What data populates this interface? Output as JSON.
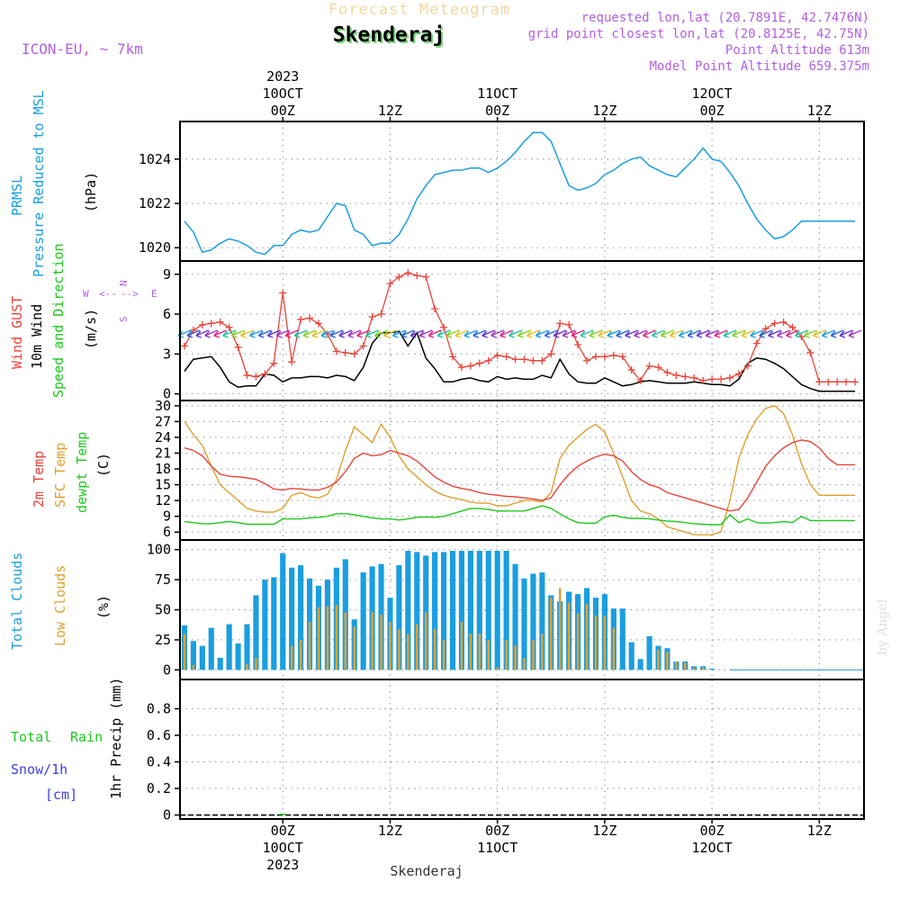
{
  "header": {
    "title": "Forecast Meteogram",
    "location": "Skenderaj",
    "model": "ICON-EU, ~ 7km",
    "requested": "requested lon,lat (20.7891E, 42.7476N)",
    "gridpoint": "grid point closest lon,lat (20.8125E, 42.75N)",
    "point_alt": "Point Altitude 613m",
    "model_alt": "Model Point Altitude 659.375m",
    "footer": "Skenderaj",
    "credit": "by Angel",
    "compass": {
      "n": "N",
      "s": "S",
      "w": "W",
      "e": "E",
      "arrows_h": "<--",
      "arrows_h2": "-->"
    }
  },
  "time_axis": {
    "top": [
      {
        "h": 0,
        "lines": [
          "2023",
          "10OCT",
          "00Z"
        ]
      },
      {
        "h": 12,
        "lines": [
          "12Z"
        ]
      },
      {
        "h": 24,
        "lines": [
          "11OCT",
          "00Z"
        ]
      },
      {
        "h": 36,
        "lines": [
          "12Z"
        ]
      },
      {
        "h": 48,
        "lines": [
          "12OCT",
          "00Z"
        ]
      },
      {
        "h": 60,
        "lines": [
          "12Z"
        ]
      }
    ],
    "bottom": [
      {
        "h": 0,
        "lines": [
          "00Z",
          "10OCT",
          "2023"
        ]
      },
      {
        "h": 12,
        "lines": [
          "12Z"
        ]
      },
      {
        "h": 24,
        "lines": [
          "00Z",
          "11OCT"
        ]
      },
      {
        "h": 36,
        "lines": [
          "12Z"
        ]
      },
      {
        "h": 48,
        "lines": [
          "00Z",
          "12OCT"
        ]
      },
      {
        "h": 60,
        "lines": [
          "12Z"
        ]
      }
    ]
  },
  "colors": {
    "blue": "#1a9ee0",
    "red": "#e8443a",
    "orange": "#e0a030",
    "green": "#1fc81f",
    "purple": "#b060e0",
    "black": "#000000",
    "snow": "#4040e0"
  },
  "chart_data": [
    {
      "type": "line",
      "name": "pressure",
      "ylabels": [
        "PRMSL",
        "Pressure Reduced to MSL",
        "(hPa)"
      ],
      "xlim": [
        -11.5,
        65
      ],
      "ylim": [
        1019.4,
        1025.7
      ],
      "yticks": [
        1020,
        1022,
        1024
      ],
      "x": [
        -11,
        -10,
        -9,
        -8,
        -7,
        -6,
        -5,
        -4,
        -3,
        -2,
        -1,
        0,
        1,
        2,
        3,
        4,
        5,
        6,
        7,
        8,
        9,
        10,
        11,
        12,
        13,
        14,
        15,
        16,
        17,
        18,
        19,
        20,
        21,
        22,
        23,
        24,
        25,
        26,
        27,
        28,
        29,
        30,
        31,
        32,
        33,
        34,
        35,
        36,
        37,
        38,
        39,
        40,
        41,
        42,
        43,
        44,
        45,
        46,
        47,
        48,
        49,
        50,
        51,
        52,
        53,
        54,
        55,
        56,
        57,
        58,
        59,
        60,
        61,
        62,
        63,
        64
      ],
      "values": [
        1021.2,
        1020.7,
        1019.8,
        1019.9,
        1020.2,
        1020.4,
        1020.3,
        1020.1,
        1019.8,
        1019.7,
        1020.1,
        1020.1,
        1020.6,
        1020.8,
        1020.7,
        1020.8,
        1021.4,
        1022.0,
        1021.9,
        1020.8,
        1020.6,
        1020.1,
        1020.2,
        1020.2,
        1020.6,
        1021.3,
        1022.2,
        1022.8,
        1023.3,
        1023.4,
        1023.5,
        1023.5,
        1023.6,
        1023.6,
        1023.4,
        1023.6,
        1023.9,
        1024.3,
        1024.8,
        1025.2,
        1025.2,
        1024.8,
        1023.8,
        1022.8,
        1022.6,
        1022.7,
        1022.9,
        1023.3,
        1023.5,
        1023.8,
        1024.0,
        1024.1,
        1023.7,
        1023.5,
        1023.3,
        1023.2,
        1023.6,
        1024.0,
        1024.5,
        1024.0,
        1023.9,
        1023.4,
        1022.8,
        1022.0,
        1021.3,
        1020.8,
        1020.4,
        1020.5,
        1020.8,
        1021.2,
        1021.2,
        1021.2,
        1021.2,
        1021.2,
        1021.2,
        1021.2
      ],
      "color": "#1a9ee0"
    },
    {
      "type": "line",
      "name": "wind",
      "ylabels": [
        "Wind GUST",
        "10m Wind",
        "Speed and Direction",
        "(m/s)"
      ],
      "xlim": [
        -11.5,
        65
      ],
      "ylim": [
        -0.5,
        10
      ],
      "yticks": [
        0,
        3,
        6,
        9
      ],
      "x": [
        -11,
        -10,
        -9,
        -8,
        -7,
        -6,
        -5,
        -4,
        -3,
        -2,
        -1,
        0,
        1,
        2,
        3,
        4,
        5,
        6,
        7,
        8,
        9,
        10,
        11,
        12,
        13,
        14,
        15,
        16,
        17,
        18,
        19,
        20,
        21,
        22,
        23,
        24,
        25,
        26,
        27,
        28,
        29,
        30,
        31,
        32,
        33,
        34,
        35,
        36,
        37,
        38,
        39,
        40,
        41,
        42,
        43,
        44,
        45,
        46,
        47,
        48,
        49,
        50,
        51,
        52,
        53,
        54,
        55,
        56,
        57,
        58,
        59,
        60,
        61,
        62,
        63,
        64
      ],
      "gust": [
        3.6,
        4.8,
        5.2,
        5.3,
        5.4,
        5.0,
        3.5,
        1.4,
        1.3,
        1.5,
        2.3,
        7.6,
        2.4,
        5.6,
        5.7,
        5.3,
        4.5,
        3.2,
        3.1,
        3.0,
        3.6,
        5.8,
        6.0,
        8.3,
        8.8,
        9.1,
        8.9,
        8.8,
        6.4,
        5.0,
        2.8,
        2.0,
        2.1,
        2.3,
        2.5,
        2.9,
        2.8,
        2.6,
        2.6,
        2.5,
        2.5,
        3.0,
        5.3,
        5.2,
        3.7,
        2.5,
        2.8,
        2.8,
        2.9,
        2.8,
        1.8,
        1.0,
        2.1,
        2.0,
        1.6,
        1.4,
        1.3,
        1.2,
        1.0,
        1.1,
        1.1,
        1.2,
        1.5,
        2.1,
        3.8,
        4.9,
        5.3,
        5.4,
        5.0,
        4.3,
        3.1,
        0.9,
        0.9,
        0.9,
        0.9,
        0.9
      ],
      "wind": [
        1.7,
        2.6,
        2.7,
        2.8,
        2.0,
        0.9,
        0.5,
        0.6,
        0.6,
        1.5,
        1.4,
        0.9,
        1.2,
        1.2,
        1.3,
        1.3,
        1.2,
        1.4,
        1.3,
        1.0,
        2.0,
        3.8,
        4.6,
        4.6,
        4.7,
        3.6,
        4.6,
        2.7,
        1.9,
        0.9,
        0.9,
        1.1,
        1.2,
        1.0,
        0.9,
        1.3,
        1.1,
        1.2,
        1.1,
        1.1,
        1.4,
        1.2,
        2.6,
        1.5,
        0.9,
        0.8,
        0.8,
        1.2,
        0.9,
        0.6,
        0.7,
        0.9,
        1.0,
        0.9,
        0.8,
        0.8,
        0.8,
        0.9,
        0.8,
        0.7,
        0.7,
        0.6,
        1.1,
        2.3,
        2.7,
        2.6,
        2.3,
        1.9,
        1.3,
        0.7,
        0.4,
        0.2,
        0.2,
        0.2,
        0.2,
        0.2
      ],
      "gust_color": "#e8443a",
      "wind_color": "#000000"
    },
    {
      "type": "line",
      "name": "temperature",
      "ylabels": [
        "2m Temp",
        "SFC Temp",
        "dewpt Temp",
        "(C)"
      ],
      "xlim": [
        -11.5,
        65
      ],
      "ylim": [
        4.5,
        31
      ],
      "yticks": [
        6,
        9,
        12,
        15,
        18,
        21,
        24,
        27,
        30
      ],
      "x": [
        -11,
        -10,
        -9,
        -8,
        -7,
        -6,
        -5,
        -4,
        -3,
        -2,
        -1,
        0,
        1,
        2,
        3,
        4,
        5,
        6,
        7,
        8,
        9,
        10,
        11,
        12,
        13,
        14,
        15,
        16,
        17,
        18,
        19,
        20,
        21,
        22,
        23,
        24,
        25,
        26,
        27,
        28,
        29,
        30,
        31,
        32,
        33,
        34,
        35,
        36,
        37,
        38,
        39,
        40,
        41,
        42,
        43,
        44,
        45,
        46,
        47,
        48,
        49,
        50,
        51,
        52,
        53,
        54,
        55,
        56,
        57,
        58,
        59,
        60,
        61,
        62,
        63,
        64
      ],
      "t2m": [
        22,
        21.5,
        20.5,
        18.5,
        17.0,
        16.6,
        16.5,
        16.3,
        16.0,
        15.2,
        14.2,
        14.0,
        14.3,
        14.2,
        14.0,
        14.0,
        14.5,
        15.5,
        17.5,
        20.0,
        21.0,
        20.5,
        20.7,
        21.5,
        21.0,
        20.5,
        19.5,
        18.0,
        16.5,
        15.5,
        14.7,
        14.3,
        14.0,
        13.5,
        13.2,
        13.0,
        12.8,
        12.7,
        12.5,
        12.3,
        12.0,
        12.5,
        15.0,
        17.0,
        18.5,
        19.5,
        20.3,
        20.8,
        20.5,
        19.5,
        17.5,
        16.0,
        15.0,
        14.5,
        13.5,
        13.0,
        12.5,
        12.0,
        11.5,
        11.0,
        10.5,
        10.0,
        10.3,
        12.5,
        15.5,
        18.5,
        20.5,
        22.0,
        23.0,
        23.5,
        23.2,
        22.0,
        20.0,
        18.8,
        18.8,
        18.8
      ],
      "tsfc": [
        27,
        24.5,
        22.5,
        18.5,
        15.0,
        13.5,
        12.0,
        10.5,
        10.0,
        9.8,
        9.8,
        10.5,
        13.0,
        13.5,
        12.8,
        12.5,
        13.2,
        16.0,
        21.5,
        26.0,
        24.5,
        23.0,
        26.5,
        24.0,
        20.5,
        18.0,
        16.5,
        15.0,
        13.8,
        13.0,
        12.5,
        12.2,
        11.7,
        11.5,
        11.5,
        11.0,
        11.0,
        11.5,
        12.0,
        12.0,
        11.7,
        13.5,
        20.0,
        22.5,
        24.0,
        25.5,
        26.5,
        25.0,
        21.0,
        16.5,
        12.0,
        10.0,
        9.5,
        8.5,
        7.0,
        6.5,
        6.0,
        5.5,
        5.5,
        5.5,
        6.0,
        12.0,
        20.0,
        24.5,
        27.5,
        29.5,
        30.0,
        28.5,
        24.5,
        19.0,
        15.0,
        13.0,
        13.0,
        13.0,
        13.0,
        13.0
      ],
      "dewpt": [
        8.0,
        7.8,
        7.6,
        7.6,
        7.8,
        8.0,
        7.8,
        7.5,
        7.5,
        7.5,
        7.5,
        8.5,
        8.5,
        8.5,
        8.7,
        8.8,
        9.0,
        9.5,
        9.5,
        9.3,
        9.0,
        8.7,
        8.5,
        8.5,
        8.3,
        8.5,
        8.8,
        8.9,
        8.8,
        9.0,
        9.5,
        10.0,
        10.5,
        10.5,
        10.3,
        10.0,
        10.0,
        10.0,
        10.0,
        10.5,
        11.0,
        10.5,
        9.5,
        8.5,
        7.8,
        7.7,
        7.7,
        8.9,
        9.2,
        8.8,
        8.6,
        8.6,
        8.5,
        8.3,
        8.1,
        8.0,
        7.8,
        7.6,
        7.5,
        7.4,
        7.4,
        9.3,
        7.8,
        8.5,
        7.8,
        7.7,
        7.8,
        8.0,
        7.8,
        9.0,
        8.2,
        8.2,
        8.2,
        8.2,
        8.2,
        8.2
      ],
      "t2m_color": "#e8443a",
      "tsfc_color": "#e0a030",
      "dewpt_color": "#1fc81f"
    },
    {
      "type": "bar",
      "name": "clouds",
      "ylabels": [
        "Total Clouds",
        "Low Clouds",
        "(%)"
      ],
      "xlim": [
        -11.5,
        65
      ],
      "ylim": [
        -8,
        108
      ],
      "yticks": [
        0,
        25,
        50,
        75,
        100
      ],
      "x": [
        -11,
        -10,
        -9,
        -8,
        -7,
        -6,
        -5,
        -4,
        -3,
        -2,
        -1,
        0,
        1,
        2,
        3,
        4,
        5,
        6,
        7,
        8,
        9,
        10,
        11,
        12,
        13,
        14,
        15,
        16,
        17,
        18,
        19,
        20,
        21,
        22,
        23,
        24,
        25,
        26,
        27,
        28,
        29,
        30,
        31,
        32,
        33,
        34,
        35,
        36,
        37,
        38,
        39,
        40,
        41,
        42,
        43,
        44,
        45,
        46,
        47,
        48,
        49,
        50,
        51,
        52,
        53,
        54,
        55,
        56,
        57,
        58,
        59,
        60,
        61,
        62,
        63,
        64
      ],
      "total": [
        37,
        24,
        20,
        35,
        10,
        38,
        22,
        38,
        62,
        75,
        77,
        97,
        85,
        87,
        76,
        70,
        75,
        85,
        92,
        42,
        81,
        86,
        88,
        60,
        87,
        99,
        98,
        95,
        98,
        98,
        99,
        99,
        99,
        99,
        99,
        99,
        99,
        88,
        76,
        80,
        81,
        62,
        57,
        65,
        63,
        68,
        60,
        63,
        51,
        51,
        23,
        9,
        28,
        20,
        18,
        7,
        7,
        3,
        3,
        1,
        0,
        0,
        0,
        0,
        0,
        0,
        0,
        0,
        0,
        0,
        0,
        0,
        0,
        0,
        0,
        0
      ],
      "low": [
        30,
        4,
        0,
        0,
        0,
        0,
        0,
        5,
        10,
        0,
        0,
        0,
        20,
        25,
        40,
        52,
        53,
        54,
        48,
        36,
        0,
        48,
        46,
        40,
        34,
        30,
        38,
        48,
        34,
        25,
        0,
        40,
        30,
        30,
        25,
        2,
        25,
        20,
        10,
        25,
        30,
        60,
        68,
        56,
        47,
        55,
        45,
        45,
        35,
        0,
        0,
        0,
        0,
        17,
        15,
        7,
        6,
        2,
        2,
        0,
        0,
        0,
        0,
        0,
        0,
        0,
        0,
        0,
        0,
        0,
        0,
        0,
        0,
        0,
        0,
        0
      ],
      "total_color": "#1a9ee0",
      "low_color": "#e0a030"
    },
    {
      "type": "bar",
      "name": "precip",
      "ylabels": [
        "Total",
        "Rain",
        "Snow/1h",
        "[cm]",
        "1hr Precip (mm)"
      ],
      "xlim": [
        -11.5,
        65
      ],
      "ylim": [
        -0.03,
        1.02
      ],
      "yticks": [
        0,
        0.2,
        0.4,
        0.6,
        0.8
      ],
      "x": [
        -11,
        -10,
        -9,
        -8,
        -7,
        -6,
        -5,
        -4,
        -3,
        -2,
        -1,
        0,
        1,
        2,
        3,
        4,
        5,
        6,
        7,
        8,
        9,
        10,
        11,
        12,
        13,
        14,
        15,
        16,
        17,
        18,
        19,
        20,
        21,
        22,
        23,
        24,
        25,
        26,
        27,
        28,
        29,
        30,
        31,
        32,
        33,
        34,
        35,
        36,
        37,
        38,
        39,
        40,
        41,
        42,
        43,
        44,
        45,
        46,
        47,
        48,
        49,
        50,
        51,
        52,
        53,
        54,
        55,
        56,
        57,
        58,
        59,
        60,
        61,
        62,
        63,
        64
      ],
      "values": [
        0,
        0,
        0,
        0,
        0,
        0,
        0,
        0,
        0,
        0,
        0,
        0.01,
        0,
        0,
        0,
        0,
        0,
        0,
        0,
        0,
        0,
        0,
        0,
        0,
        0,
        0,
        0,
        0,
        0,
        0,
        0,
        0,
        0,
        0,
        0,
        0,
        0,
        0,
        0,
        0,
        0,
        0,
        0,
        0,
        0,
        0,
        0,
        0,
        0,
        0,
        0,
        0,
        0,
        0,
        0,
        0,
        0,
        0,
        0,
        0,
        0,
        0,
        0,
        0,
        0,
        0,
        0,
        0,
        0,
        0,
        0,
        0,
        0,
        0,
        0,
        0
      ],
      "color": "#1fc81f"
    }
  ]
}
